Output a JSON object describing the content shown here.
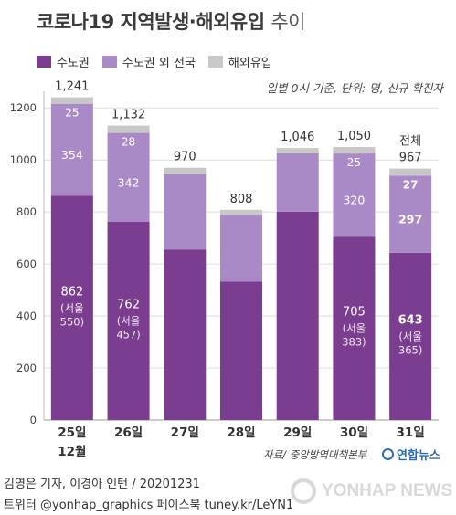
{
  "title": {
    "main": "코로나19 지역발생·해외유입",
    "suffix": "추이"
  },
  "legend": [
    {
      "label": "수도권",
      "color": "#7a3d8f"
    },
    {
      "label": "수도권 외 전국",
      "color": "#a98ac7"
    },
    {
      "label": "해외유입",
      "color": "#c8c8c8"
    }
  ],
  "note": "일별 0시 기준, 단위: 명, 신규 확진자",
  "source": "자료/ 중앙방역대책본부",
  "logo_text": "연합뉴스",
  "watermark": "YONHAP NEWS",
  "footer": {
    "line1": "김영은 기자, 이경아 인턴 / 20201231",
    "line2": "트위터 @yonhap_graphics  페이스북 tuney.kr/LeYN1"
  },
  "chart_data": {
    "type": "bar",
    "stacked": true,
    "categories": [
      "25일",
      "26일",
      "27일",
      "28일",
      "29일",
      "30일",
      "31일"
    ],
    "category_sublabels": [
      "12월",
      "",
      "",
      "",
      "",
      "",
      ""
    ],
    "series": [
      {
        "name": "수도권",
        "color": "#7a3d8f",
        "values": [
          862,
          762,
          656,
          532,
          801,
          705,
          643
        ]
      },
      {
        "name": "수도권 외 전국",
        "color": "#a98ac7",
        "values": [
          354,
          342,
          289,
          257,
          225,
          320,
          297
        ]
      },
      {
        "name": "해외유입",
        "color": "#c8c8c8",
        "values": [
          25,
          28,
          25,
          19,
          20,
          25,
          27
        ]
      }
    ],
    "totals": [
      1241,
      1132,
      970,
      808,
      1046,
      1050,
      967
    ],
    "total_prefix": "전체",
    "total_prefix_index": 6,
    "segment_labels": {
      "bottom": [
        "862",
        "762",
        "",
        "",
        "",
        "705",
        "643"
      ],
      "middle": [
        "354",
        "342",
        "",
        "",
        "",
        "320",
        "297"
      ],
      "top": [
        "25",
        "28",
        "",
        "",
        "",
        "25",
        "27"
      ]
    },
    "seoul_labels": [
      "(서울\n550)",
      "(서울\n457)",
      "",
      "",
      "",
      "(서울\n383)",
      "(서울\n365)"
    ],
    "highlight_index": 6,
    "ylim": [
      0,
      1250
    ],
    "yticks": [
      0,
      200,
      400,
      600,
      800,
      1000,
      1200
    ],
    "grid": true
  }
}
